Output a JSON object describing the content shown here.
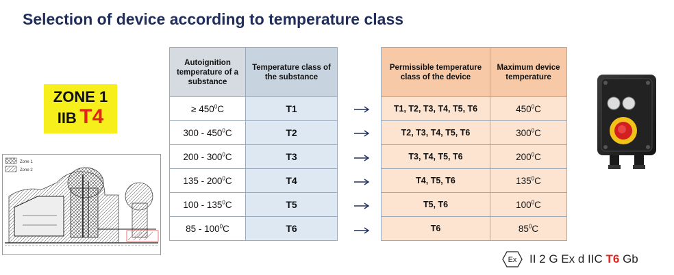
{
  "title": "Selection of device according to temperature class",
  "zone": {
    "line1": "ZONE 1",
    "group": "IIB",
    "temp_class": "T4"
  },
  "drawing_legend": [
    "Zone 1",
    "Zone 2"
  ],
  "left_table": {
    "headers": [
      "Autoignition temperature of a substance",
      "Temperature class of the substance"
    ],
    "rows": [
      {
        "temp": "≥ 450",
        "tclass": "T1"
      },
      {
        "temp": "300 - 450",
        "tclass": "T2"
      },
      {
        "temp": "200 - 300",
        "tclass": "T3"
      },
      {
        "temp": "135 - 200",
        "tclass": "T4"
      },
      {
        "temp": "100 - 135",
        "tclass": "T5"
      },
      {
        "temp": "85 - 100",
        "tclass": "T6"
      }
    ]
  },
  "right_table": {
    "headers": [
      "Permissible temperature class of the device",
      "Maximum device temperature"
    ],
    "rows": [
      {
        "permissible": "T1, T2, T3, T4, T5, T6",
        "max_temp": "450"
      },
      {
        "permissible": "T2, T3, T4, T5, T6",
        "max_temp": "300"
      },
      {
        "permissible": "T3, T4, T5, T6",
        "max_temp": "200"
      },
      {
        "permissible": "T4, T5, T6",
        "max_temp": "135"
      },
      {
        "permissible": "T5, T6",
        "max_temp": "100"
      },
      {
        "permissible": "T6",
        "max_temp": "85"
      }
    ]
  },
  "degree_unit": {
    "sup": "0",
    "unit": "C"
  },
  "ex_marking": {
    "symbol": "Ex",
    "prefix": "II 2 G Ex d IIC",
    "tclass": "T6",
    "suffix": "Gb"
  },
  "colors": {
    "title": "#1f2d5c",
    "accent_red": "#e3241b",
    "zone_yellow": "#f7ef1c"
  }
}
